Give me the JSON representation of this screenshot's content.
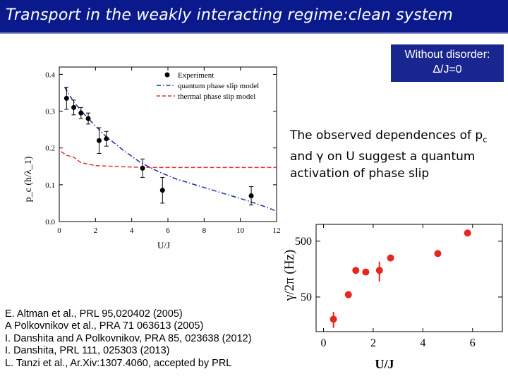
{
  "title": "Transport in the weakly interacting regime:clean system",
  "disorder_note": {
    "line1": "Without disorder:",
    "line2": "Δ/J=0"
  },
  "observation": "The observed dependences of p",
  "observation_sub": "c",
  "observation_mid": " and γ on U suggest a quantum activation of phase slip",
  "references": [
    "E. Altman et al., PRL 95,020402 (2005)",
    "A Polkovnikov et al., PRA 71 063613 (2005)",
    "I. Danshita and A Polkovnikov, PRA 85, 023638 (2012)",
    "I. Danshita, PRL 111, 025303 (2013)",
    "L. Tanzi et al., Ar.Xiv:1307.4060, accepted by PRL"
  ],
  "colors": {
    "title_bg": "#0a1a8c",
    "experiment": "#000000",
    "quantum_model": "#1a2ea0",
    "thermal_model": "#e0302a",
    "right_points": "#e5271f"
  },
  "chart_data": [
    {
      "type": "scatter",
      "xlabel": "U/J",
      "ylabel": "p_c (h/λ_1)",
      "xlim": [
        0,
        12
      ],
      "ylim": [
        0,
        0.42
      ],
      "xticks": [
        "0",
        "2",
        "4",
        "6",
        "8",
        "10",
        "12"
      ],
      "yticks": [
        "0.0",
        "0.1",
        "0.2",
        "0.3",
        "0.4"
      ],
      "legend_position": "top-right",
      "series": [
        {
          "name": "Experiment",
          "kind": "points",
          "x": [
            0.4,
            0.8,
            1.2,
            1.6,
            2.2,
            2.6,
            4.6,
            5.7,
            10.6
          ],
          "y": [
            0.335,
            0.31,
            0.295,
            0.28,
            0.22,
            0.225,
            0.145,
            0.085,
            0.07
          ],
          "err": [
            0.03,
            0.02,
            0.015,
            0.015,
            0.035,
            0.02,
            0.025,
            0.035,
            0.025
          ]
        },
        {
          "name": "quantum phase slip model",
          "kind": "dash-dot line",
          "x": [
            0.3,
            0.8,
            1.5,
            2.5,
            3.5,
            4.5,
            5.5,
            6.5,
            7.5,
            8.5,
            9.5,
            10.5,
            11.5,
            12
          ],
          "y": [
            0.365,
            0.325,
            0.285,
            0.235,
            0.195,
            0.16,
            0.135,
            0.115,
            0.1,
            0.085,
            0.07,
            0.055,
            0.038,
            0.028
          ]
        },
        {
          "name": "thermal phase slip model",
          "kind": "dashed line",
          "x": [
            0.1,
            0.4,
            0.8,
            1.2,
            2,
            3,
            4,
            5,
            6,
            7,
            8,
            9,
            10,
            11,
            12
          ],
          "y": [
            0.19,
            0.18,
            0.175,
            0.16,
            0.152,
            0.15,
            0.148,
            0.147,
            0.147,
            0.147,
            0.147,
            0.147,
            0.147,
            0.147,
            0.147
          ]
        }
      ]
    },
    {
      "type": "scatter",
      "xlabel": "U/J",
      "ylabel": "γ/2π (Hz)",
      "y_scale": "log",
      "xlim": [
        -0.3,
        7.2
      ],
      "ylim": [
        12,
        1000
      ],
      "xticks": [
        "0",
        "2",
        "4",
        "6"
      ],
      "yticks": [
        "50",
        "500"
      ],
      "series": [
        {
          "kind": "points",
          "x": [
            0.4,
            1.0,
            1.3,
            1.7,
            2.25,
            2.7,
            4.6,
            5.8
          ],
          "y": [
            20,
            55,
            150,
            140,
            150,
            250,
            300,
            700
          ],
          "err_low": [
            14,
            55,
            150,
            140,
            95,
            250,
            300,
            700
          ],
          "err_high": [
            27,
            55,
            150,
            140,
            215,
            250,
            300,
            700
          ]
        }
      ]
    }
  ]
}
